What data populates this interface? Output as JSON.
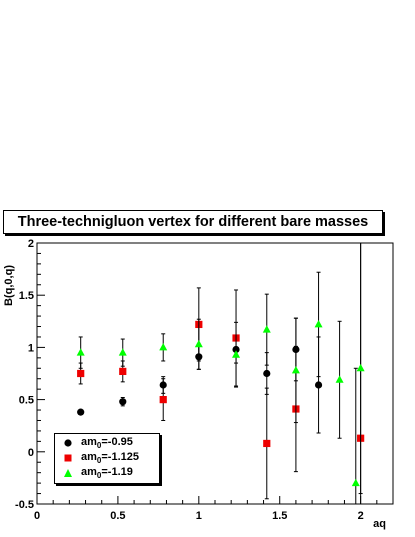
{
  "chart_data": {
    "type": "scatter",
    "title": "Three-technigluon vertex for different bare masses",
    "xlabel": "aq",
    "ylabel": "B(q,0,q)",
    "xlim": [
      0,
      2.2
    ],
    "ylim": [
      -0.5,
      2
    ],
    "xticks": [
      "0",
      "0.5",
      "1",
      "1.5",
      "2"
    ],
    "yticks": [
      "-0.5",
      "0",
      "0.5",
      "1",
      "1.5",
      "2"
    ],
    "legend_placement": "bottom-left",
    "series": [
      {
        "name": "am0=-0.95",
        "marker": "circle",
        "color": "#000000",
        "points": [
          {
            "x": 0.27,
            "y": 0.38,
            "err": 0.02
          },
          {
            "x": 0.53,
            "y": 0.48,
            "err": 0.04
          },
          {
            "x": 0.78,
            "y": 0.64,
            "err": 0.08
          },
          {
            "x": 1.0,
            "y": 0.91,
            "err": 0.12
          },
          {
            "x": 1.23,
            "y": 0.98,
            "err": 0.13
          },
          {
            "x": 1.42,
            "y": 0.75,
            "err": 0.2
          },
          {
            "x": 1.6,
            "y": 0.98,
            "err": 0.3
          },
          {
            "x": 1.74,
            "y": 0.64,
            "err": 0.46
          }
        ]
      },
      {
        "name": "am0=-1.125",
        "marker": "square",
        "color": "#ee0000",
        "points": [
          {
            "x": 0.27,
            "y": 0.75,
            "err": 0.1
          },
          {
            "x": 0.53,
            "y": 0.77,
            "err": 0.1
          },
          {
            "x": 0.78,
            "y": 0.5,
            "err": 0.2
          },
          {
            "x": 1.0,
            "y": 1.22,
            "err": 0.35
          },
          {
            "x": 1.23,
            "y": 1.09,
            "err": 0.46
          },
          {
            "x": 1.42,
            "y": 0.08,
            "err": 0.53
          },
          {
            "x": 1.6,
            "y": 0.41,
            "err": 0.6
          },
          {
            "x": 2.0,
            "y": 0.13,
            "err": 1.9
          }
        ]
      },
      {
        "name": "am0=-1.19",
        "marker": "triangle",
        "color": "#00ff00",
        "points": [
          {
            "x": 0.27,
            "y": 0.95,
            "err": 0.15
          },
          {
            "x": 0.53,
            "y": 0.95,
            "err": 0.13
          },
          {
            "x": 0.78,
            "y": 1.0,
            "err": 0.13
          },
          {
            "x": 1.0,
            "y": 1.03,
            "err": 0.24
          },
          {
            "x": 1.23,
            "y": 0.93,
            "err": 0.31
          },
          {
            "x": 1.42,
            "y": 1.17,
            "err": 0.34
          },
          {
            "x": 1.6,
            "y": 0.78,
            "err": 0.5
          },
          {
            "x": 1.74,
            "y": 1.22,
            "err": 0.5
          },
          {
            "x": 1.87,
            "y": 0.69,
            "err": 0.56
          },
          {
            "x": 1.97,
            "y": -0.3,
            "err": 1.1
          },
          {
            "x": 2.0,
            "y": 0.8,
            "err": 1.2
          }
        ]
      }
    ]
  },
  "legend": {
    "entries": [
      {
        "prefix": "am",
        "sub": "0",
        "value": "=-0.95"
      },
      {
        "prefix": "am",
        "sub": "0",
        "value": "=-1.125"
      },
      {
        "prefix": "am",
        "sub": "0",
        "value": "=-1.19"
      }
    ]
  }
}
